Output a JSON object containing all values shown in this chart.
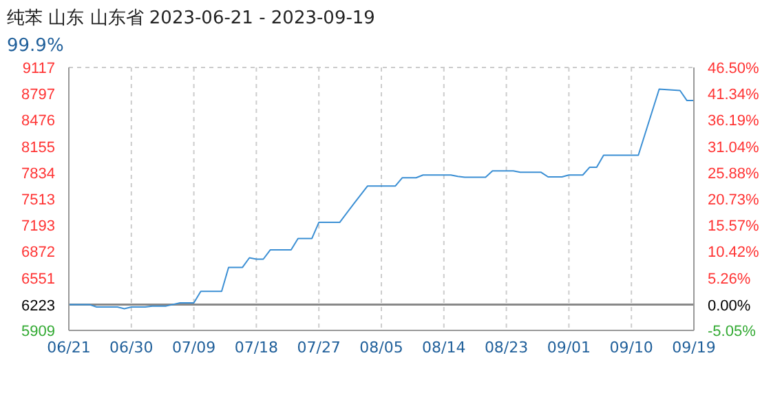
{
  "chart_data": {
    "type": "line",
    "title": "纯苯 山东 山东省 2023-06-21 - 2023-09-19",
    "subtitle": "99.9%",
    "x": [
      "2023-06-21",
      "2023-06-24",
      "2023-06-25",
      "2023-06-28",
      "2023-06-29",
      "2023-06-30",
      "2023-07-02",
      "2023-07-03",
      "2023-07-05",
      "2023-07-07",
      "2023-07-09",
      "2023-07-10",
      "2023-07-13",
      "2023-07-14",
      "2023-07-16",
      "2023-07-17",
      "2023-07-18",
      "2023-07-19",
      "2023-07-20",
      "2023-07-23",
      "2023-07-24",
      "2023-07-26",
      "2023-07-27",
      "2023-07-30",
      "2023-08-01",
      "2023-08-03",
      "2023-08-07",
      "2023-08-08",
      "2023-08-10",
      "2023-08-11",
      "2023-08-15",
      "2023-08-16",
      "2023-08-17",
      "2023-08-20",
      "2023-08-21",
      "2023-08-24",
      "2023-08-25",
      "2023-08-28",
      "2023-08-29",
      "2023-08-31",
      "2023-09-01",
      "2023-09-03",
      "2023-09-04",
      "2023-09-05",
      "2023-09-06",
      "2023-09-11",
      "2023-09-14",
      "2023-09-17",
      "2023-09-18",
      "2023-09-19"
    ],
    "series": [
      {
        "color": "#3b8fd4",
        "values": [
          6223,
          6223,
          6195,
          6195,
          6173,
          6195,
          6195,
          6206,
          6206,
          6245,
          6245,
          6386,
          6386,
          6678,
          6678,
          6795,
          6778,
          6778,
          6891,
          6891,
          7031,
          7031,
          7227,
          7227,
          7451,
          7670,
          7670,
          7771,
          7771,
          7805,
          7805,
          7788,
          7777,
          7777,
          7855,
          7855,
          7838,
          7838,
          7782,
          7782,
          7805,
          7805,
          7900,
          7900,
          8046,
          8046,
          8853,
          8836,
          8713,
          8713
        ]
      }
    ],
    "xlim": [
      "2023-06-21",
      "2023-09-19"
    ],
    "xticks": [
      {
        "value": "2023-06-21",
        "label": "06/21"
      },
      {
        "value": "2023-06-30",
        "label": "06/30"
      },
      {
        "value": "2023-07-09",
        "label": "07/09"
      },
      {
        "value": "2023-07-18",
        "label": "07/18"
      },
      {
        "value": "2023-07-27",
        "label": "07/27"
      },
      {
        "value": "2023-08-05",
        "label": "08/05"
      },
      {
        "value": "2023-08-14",
        "label": "08/14"
      },
      {
        "value": "2023-08-23",
        "label": "08/23"
      },
      {
        "value": "2023-09-01",
        "label": "09/01"
      },
      {
        "value": "2023-09-10",
        "label": "09/10"
      },
      {
        "value": "2023-09-19",
        "label": "09/19"
      }
    ],
    "ylim": [
      5909,
      9117
    ],
    "yticks": [
      5909,
      6223,
      6551,
      6872,
      7193,
      7513,
      7834,
      8155,
      8476,
      8797,
      9117
    ],
    "y2lim": [
      -5.05,
      46.5
    ],
    "y2ticks": [
      {
        "value": -5.05,
        "label": "-5.05%"
      },
      {
        "value": 0,
        "label": "0.00%"
      },
      {
        "value": 5.26,
        "label": "5.26%"
      },
      {
        "value": 10.42,
        "label": "10.42%"
      },
      {
        "value": 15.57,
        "label": "15.57%"
      },
      {
        "value": 20.73,
        "label": "20.73%"
      },
      {
        "value": 25.88,
        "label": "25.88%"
      },
      {
        "value": 31.04,
        "label": "31.04%"
      },
      {
        "value": 36.19,
        "label": "36.19%"
      },
      {
        "value": 41.34,
        "label": "41.34%"
      },
      {
        "value": 46.5,
        "label": "46.50%"
      }
    ],
    "ref_lines": [
      {
        "axis": "y",
        "value": 6223,
        "color": "#888888"
      }
    ],
    "grid": true,
    "marker": "none",
    "line_style": "solid"
  }
}
